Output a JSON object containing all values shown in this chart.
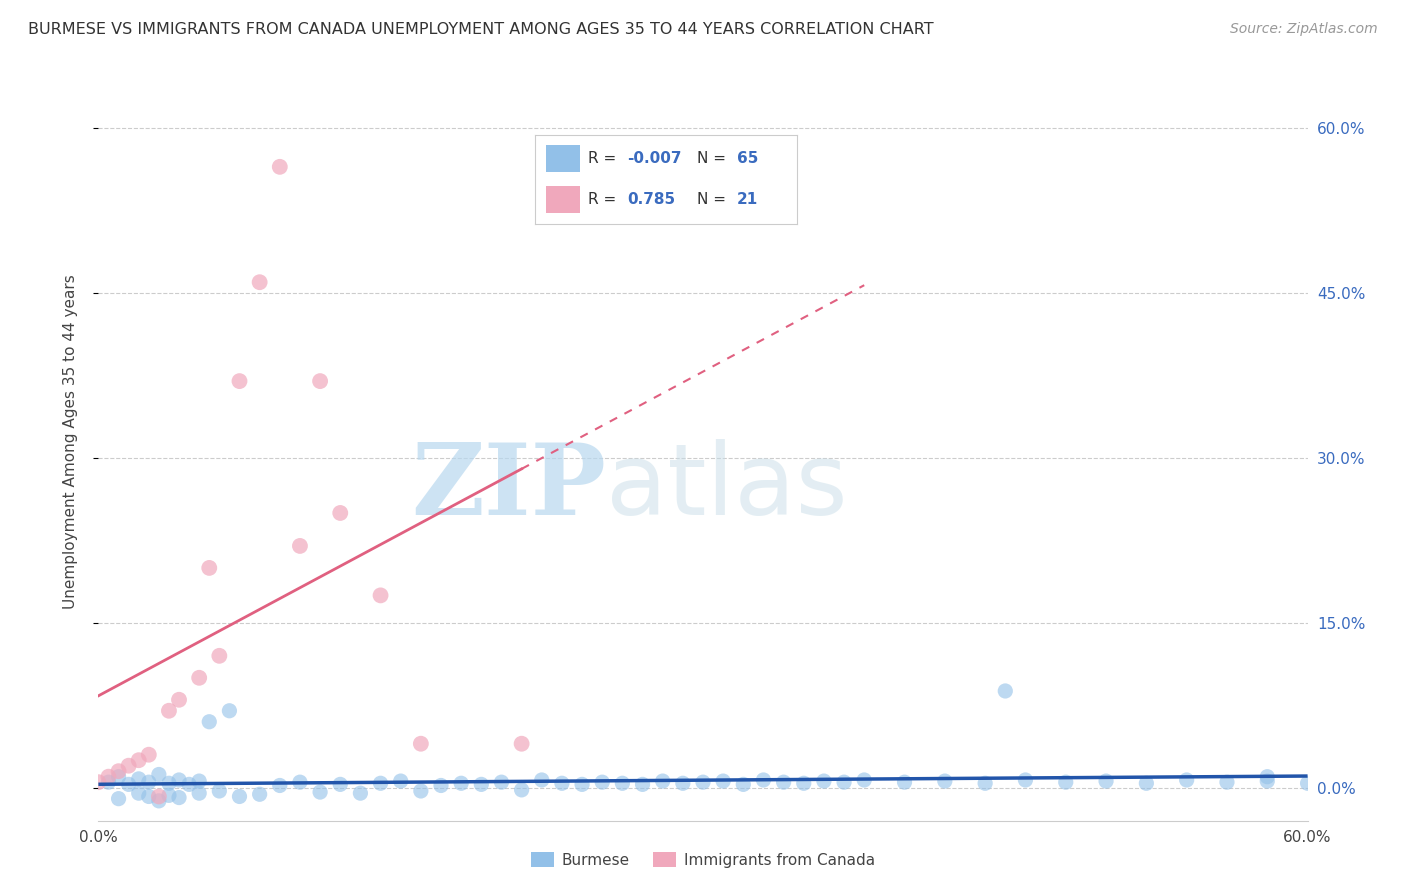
{
  "title": "BURMESE VS IMMIGRANTS FROM CANADA UNEMPLOYMENT AMONG AGES 35 TO 44 YEARS CORRELATION CHART",
  "source": "Source: ZipAtlas.com",
  "ylabel": "Unemployment Among Ages 35 to 44 years",
  "xmin": 0.0,
  "xmax": 0.6,
  "ymin": -0.03,
  "ymax": 0.66,
  "x_ticks": [
    0.0,
    0.1,
    0.2,
    0.3,
    0.4,
    0.5,
    0.6
  ],
  "x_tick_labels": [
    "0.0%",
    "",
    "",
    "",
    "",
    "",
    "60.0%"
  ],
  "y_ticks": [
    0.0,
    0.15,
    0.3,
    0.45,
    0.6
  ],
  "y_tick_labels_right": [
    "0.0%",
    "15.0%",
    "30.0%",
    "45.0%",
    "60.0%"
  ],
  "blue_R": -0.007,
  "blue_N": 65,
  "pink_R": 0.785,
  "pink_N": 21,
  "blue_color": "#92c0e8",
  "pink_color": "#f0a8bc",
  "blue_line_color": "#2255aa",
  "pink_line_color": "#e06080",
  "legend_blue_label": "Burmese",
  "legend_pink_label": "Immigrants from Canada",
  "watermark_zip": "ZIP",
  "watermark_atlas": "atlas",
  "watermark_color": "#d0e8f5",
  "grid_color": "#cccccc",
  "background_color": "#ffffff"
}
